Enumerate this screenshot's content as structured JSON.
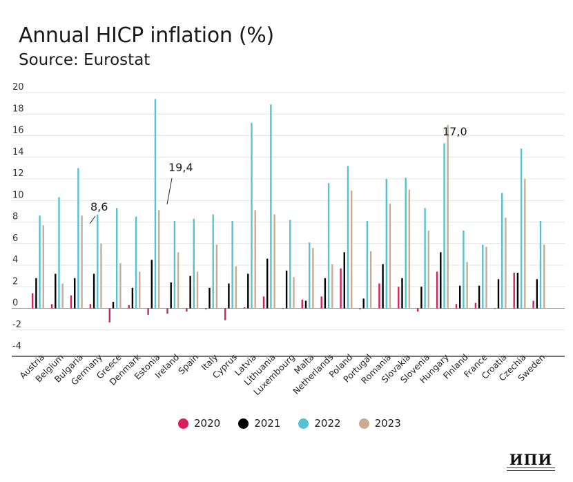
{
  "title": "Annual HICP inflation (%)",
  "subtitle": "Source: Eurostat",
  "colors": {
    "2020": "#d81e5b",
    "2021": "#000000",
    "2022": "#55c2d3",
    "2023": "#c7ad93"
  },
  "logo": {
    "text": "ИПИ"
  },
  "chart_data": {
    "type": "bar",
    "title": "Annual HICP inflation (%)",
    "subtitle": "Source: Eurostat",
    "ylim": [
      -4,
      20
    ],
    "yticks": [
      "-4",
      "-2",
      "0",
      "2",
      "4",
      "6",
      "8",
      "10",
      "12",
      "14",
      "16",
      "18",
      "20"
    ],
    "grid": true,
    "legend_position": "bottom",
    "categories": [
      "Austria",
      "Belgium",
      "Bulgaria",
      "Germany",
      "Greece",
      "Denmark",
      "Estonia",
      "Ireland",
      "Spain",
      "Italy",
      "Cyprus",
      "Latvia",
      "Lithuania",
      "Luxembourg",
      "Malta",
      "Netherlands",
      "Poland",
      "Portugal",
      "Romania",
      "Slovakia",
      "Slovenia",
      "Hungary",
      "Finland",
      "France",
      "Croatia",
      "Czechia",
      "Sweden"
    ],
    "series": [
      {
        "name": "2020",
        "values": [
          1.4,
          0.4,
          1.2,
          0.4,
          -1.3,
          0.3,
          -0.6,
          -0.5,
          -0.3,
          -0.1,
          -1.1,
          0.1,
          1.1,
          0.0,
          0.8,
          1.1,
          3.7,
          -0.1,
          2.3,
          2.0,
          -0.3,
          3.4,
          0.4,
          0.5,
          0.0,
          3.3,
          0.7
        ]
      },
      {
        "name": "2021",
        "values": [
          2.8,
          3.2,
          2.8,
          3.2,
          0.6,
          1.9,
          4.5,
          2.4,
          3.0,
          1.9,
          2.3,
          3.2,
          4.6,
          3.5,
          0.7,
          2.8,
          5.2,
          0.9,
          4.1,
          2.8,
          2.0,
          5.2,
          2.1,
          2.1,
          2.7,
          3.3,
          2.7
        ]
      },
      {
        "name": "2022",
        "values": [
          8.6,
          10.3,
          13.0,
          8.7,
          9.3,
          8.5,
          19.4,
          8.1,
          8.3,
          8.7,
          8.1,
          17.2,
          18.9,
          8.2,
          6.1,
          11.6,
          13.2,
          8.1,
          12.0,
          12.1,
          9.3,
          15.3,
          7.2,
          5.9,
          10.7,
          14.8,
          8.1
        ]
      },
      {
        "name": "2023",
        "values": [
          7.7,
          2.3,
          8.6,
          6.0,
          4.2,
          3.4,
          9.1,
          5.2,
          3.4,
          5.9,
          3.9,
          9.1,
          8.7,
          2.9,
          5.6,
          4.1,
          10.9,
          5.3,
          9.7,
          11.0,
          7.2,
          17.0,
          4.3,
          5.7,
          8.4,
          12.0,
          5.9
        ]
      }
    ],
    "annotations": [
      {
        "label": "8,6",
        "category": "Bulgaria"
      },
      {
        "label": "19,4",
        "category": "Estonia"
      },
      {
        "label": "17,0",
        "category": "Hungary"
      }
    ]
  }
}
